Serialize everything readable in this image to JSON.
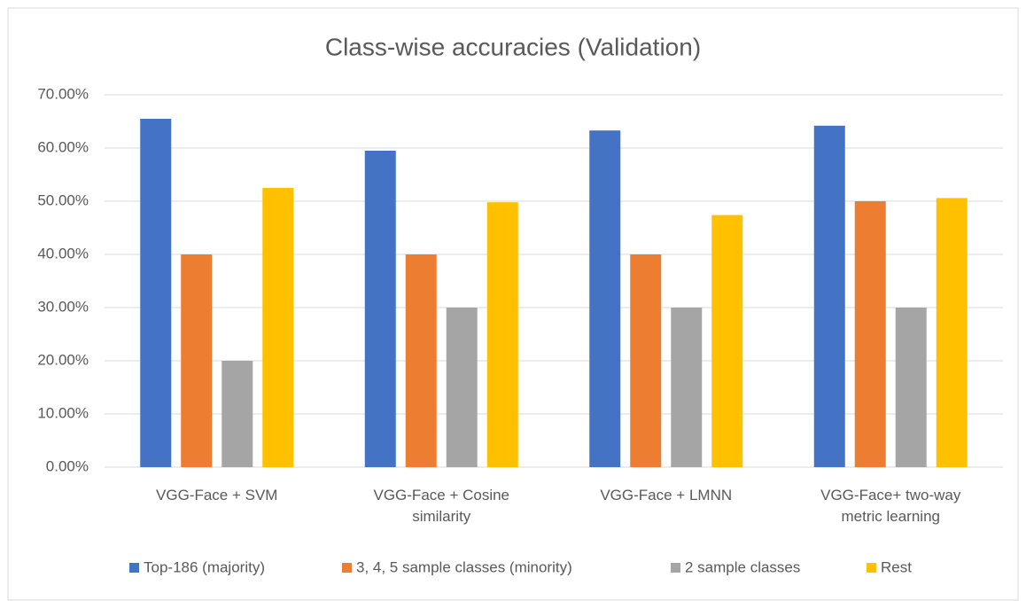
{
  "chart_data": {
    "type": "bar",
    "title": "Class-wise accuracies (Validation)",
    "categories": [
      "VGG-Face + SVM",
      "VGG-Face + Cosine similarity",
      "VGG-Face + LMNN",
      "VGG-Face+ two-way metric learning"
    ],
    "series": [
      {
        "name": "Top-186 (majority)",
        "color": "#4472c4",
        "values": [
          65.5,
          59.5,
          63.3,
          64.2
        ]
      },
      {
        "name": "3, 4, 5 sample classes (minority)",
        "color": "#ed7d31",
        "values": [
          40,
          40,
          40,
          50
        ]
      },
      {
        "name": "2 sample classes",
        "color": "#a5a5a5",
        "values": [
          20,
          30,
          30,
          30
        ]
      },
      {
        "name": "Rest",
        "color": "#ffc000",
        "values": [
          52.5,
          49.8,
          47.4,
          50.6
        ]
      }
    ],
    "ylim": [
      0,
      70
    ],
    "yticks": [
      {
        "value": 0,
        "label": "0.00%"
      },
      {
        "value": 10,
        "label": "10.00%"
      },
      {
        "value": 20,
        "label": "20.00%"
      },
      {
        "value": 30,
        "label": "30.00%"
      },
      {
        "value": 40,
        "label": "40.00%"
      },
      {
        "value": 50,
        "label": "50.00%"
      },
      {
        "value": 60,
        "label": "60.00%"
      },
      {
        "value": 70,
        "label": "70.00%"
      }
    ],
    "grid": true,
    "legend": "bottom"
  }
}
